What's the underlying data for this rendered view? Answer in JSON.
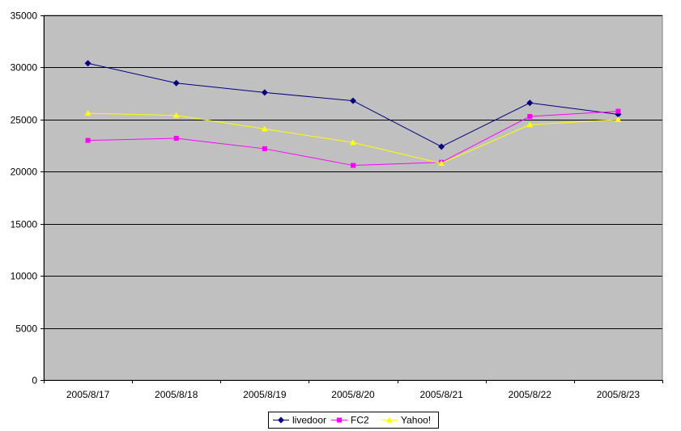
{
  "chart_data": {
    "type": "line",
    "title": "",
    "xlabel": "",
    "ylabel": "",
    "categories": [
      "2005/8/17",
      "2005/8/18",
      "2005/8/19",
      "2005/8/20",
      "2005/8/21",
      "2005/8/22",
      "2005/8/23"
    ],
    "ylim": [
      0,
      35000
    ],
    "yticks": [
      0,
      5000,
      10000,
      15000,
      20000,
      25000,
      30000,
      35000
    ],
    "ytick_labels": [
      "0",
      "5000",
      "10000",
      "15000",
      "20000",
      "25000",
      "30000",
      "35000"
    ],
    "grid": "horizontal",
    "plot_background": "#c0c0c0",
    "legend_position": "bottom",
    "series": [
      {
        "name": "livedoor",
        "color": "#000080",
        "marker": "diamond",
        "values": [
          30400,
          28500,
          27600,
          26800,
          22400,
          26600,
          25500
        ]
      },
      {
        "name": "FC2",
        "color": "#ff00ff",
        "marker": "square",
        "values": [
          23000,
          23200,
          22200,
          20600,
          20900,
          25300,
          25800
        ]
      },
      {
        "name": "Yahoo!",
        "color": "#ffff00",
        "marker": "triangle",
        "values": [
          25600,
          25400,
          24100,
          22800,
          20800,
          24500,
          25000
        ]
      }
    ]
  }
}
